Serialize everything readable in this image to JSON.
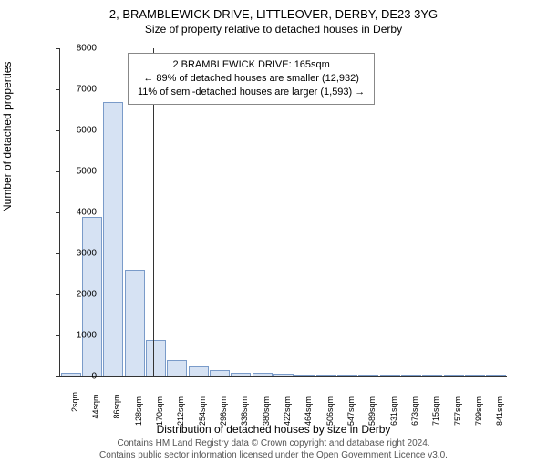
{
  "title_main": "2, BRAMBLEWICK DRIVE, LITTLEOVER, DERBY, DE23 3YG",
  "title_sub": "Size of property relative to detached houses in Derby",
  "info_box": {
    "line1": "2 BRAMBLEWICK DRIVE: 165sqm",
    "line2": "← 89% of detached houses are smaller (12,932)",
    "line3": "11% of semi-detached houses are larger (1,593) →"
  },
  "ylabel": "Number of detached properties",
  "xlabel": "Distribution of detached houses by size in Derby",
  "footer_line1": "Contains HM Land Registry data © Crown copyright and database right 2024.",
  "footer_line2": "Contains public sector information licensed under the Open Government Licence v3.0.",
  "chart": {
    "ylim": [
      0,
      8000
    ],
    "ytick_step": 1000,
    "x_categories": [
      "2sqm",
      "44sqm",
      "86sqm",
      "128sqm",
      "170sqm",
      "212sqm",
      "254sqm",
      "296sqm",
      "338sqm",
      "380sqm",
      "422sqm",
      "464sqm",
      "506sqm",
      "547sqm",
      "589sqm",
      "631sqm",
      "673sqm",
      "715sqm",
      "757sqm",
      "799sqm",
      "841sqm"
    ],
    "bar_values": [
      100,
      3900,
      6700,
      2600,
      900,
      400,
      250,
      150,
      100,
      80,
      60,
      40,
      30,
      20,
      15,
      10,
      10,
      5,
      5,
      5,
      5
    ],
    "bar_fill": "#d6e2f3",
    "bar_stroke": "#7a9bc9",
    "marker_x_index": 3.88,
    "marker_color": "#333333",
    "background": "#ffffff"
  }
}
